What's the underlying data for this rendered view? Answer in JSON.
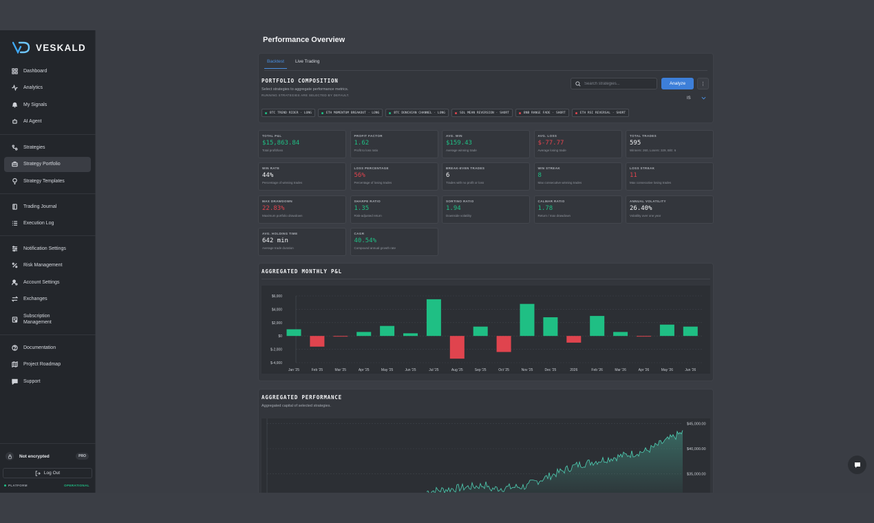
{
  "app": {
    "name": "VESKALD"
  },
  "sidebar": {
    "groups": [
      [
        {
          "label": "Dashboard",
          "icon": "grid-icon"
        },
        {
          "label": "Analytics",
          "icon": "activity-icon"
        },
        {
          "label": "My Signals",
          "icon": "bell-icon"
        },
        {
          "label": "AI Agent",
          "icon": "bot-icon"
        }
      ],
      [
        {
          "label": "Strategies",
          "icon": "route-icon"
        },
        {
          "label": "Strategy Portfolio",
          "icon": "briefcase-icon",
          "active": true
        },
        {
          "label": "Strategy Templates",
          "icon": "lightbulb-icon"
        }
      ],
      [
        {
          "label": "Trading Journal",
          "icon": "book-icon"
        },
        {
          "label": "Execution Log",
          "icon": "list-icon"
        }
      ],
      [
        {
          "label": "Notification Settings",
          "icon": "sliders-icon"
        },
        {
          "label": "Risk Management",
          "icon": "percent-icon"
        },
        {
          "label": "Account Settings",
          "icon": "user-cog-icon"
        },
        {
          "label": "Exchanges",
          "icon": "swap-icon"
        },
        {
          "label": "Subscription Management",
          "icon": "receipt-icon"
        }
      ],
      [
        {
          "label": "Documentation",
          "icon": "help-icon"
        },
        {
          "label": "Project Roadmap",
          "icon": "map-icon"
        },
        {
          "label": "Support",
          "icon": "chat-icon"
        }
      ]
    ],
    "encryption": {
      "label": "Not encrypted",
      "badge": "PRO"
    },
    "logout_label": "Log Out",
    "status": {
      "left": "PLATFORM",
      "right": "OPERATIONAL"
    }
  },
  "page": {
    "title": "Performance Overview"
  },
  "tabs": [
    {
      "label": "Backtest",
      "active": true
    },
    {
      "label": "Live Trading"
    }
  ],
  "portfolio": {
    "title": "PORTFOLIO COMPOSITION",
    "description": "Select strategies to aggregate performance metrics.",
    "note": "RUNNING STRATEGIES ARE SELECTED BY DEFAULT.",
    "search_placeholder": "Search strategies...",
    "analyze_label": "Analyze",
    "kebab": "⋮",
    "sample_select": "IS",
    "chips": [
      {
        "label": "BTC TREND RIDER · LONG",
        "side": "long"
      },
      {
        "label": "ETH MOMENTUM BREAKOUT · LONG",
        "side": "long"
      },
      {
        "label": "BTC DONCHIAN CHANNEL · LONG",
        "side": "long"
      },
      {
        "label": "SOL MEAN REVERSION · SHORT",
        "side": "short"
      },
      {
        "label": "BNB RANGE FADE · SHORT",
        "side": "short"
      },
      {
        "label": "ETH RSI REVERSAL · SHORT",
        "side": "short"
      }
    ],
    "colors": {
      "long": "#1fbf84",
      "short": "#e0444e"
    }
  },
  "metrics": [
    {
      "label": "TOTAL P&L",
      "value": "$15,863.84",
      "sub": "Total profit/loss",
      "tone": "pos"
    },
    {
      "label": "PROFIT FACTOR",
      "value": "1.62",
      "sub": "Profit to loss ratio",
      "tone": "pos"
    },
    {
      "label": "AVG. WIN",
      "value": "$159.43",
      "sub": "Average winning trade",
      "tone": "pos"
    },
    {
      "label": "AVG. LOSS",
      "value": "$-77.77",
      "sub": "Average losing trade",
      "tone": "neg"
    },
    {
      "label": "TOTAL TRADES",
      "value": "595",
      "sub": "Winners: 260, Losers: 329, B/E: 6",
      "tone": "neu"
    },
    {
      "label": "WIN RATE",
      "value": "44%",
      "sub": "Percentage of winning trades",
      "tone": "neu"
    },
    {
      "label": "LOSS PERCENTAGE",
      "value": "56%",
      "sub": "Percentage of losing trades",
      "tone": "neg"
    },
    {
      "label": "BREAK-EVEN TRADES",
      "value": "6",
      "sub": "Trades with no profit or loss",
      "tone": "neu"
    },
    {
      "label": "WIN STREAK",
      "value": "8",
      "sub": "Max consecutive winning trades",
      "tone": "pos"
    },
    {
      "label": "LOSS STREAK",
      "value": "11",
      "sub": "Max consecutive losing trades",
      "tone": "neg"
    },
    {
      "label": "MAX DRAWDOWN",
      "value": "22.83%",
      "sub": "Maximum portfolio drawdown",
      "tone": "neg"
    },
    {
      "label": "SHARPE RATIO",
      "value": "1.35",
      "sub": "Risk-adjusted return",
      "tone": "pos"
    },
    {
      "label": "SORTINO RATIO",
      "value": "1.94",
      "sub": "Downside volatility",
      "tone": "pos"
    },
    {
      "label": "CALMAR RATIO",
      "value": "1.78",
      "sub": "Return / max drawdown",
      "tone": "pos"
    },
    {
      "label": "ANNUAL VOLATILITY",
      "value": "26.40%",
      "sub": "Volatility over one year",
      "tone": "neu"
    },
    {
      "label": "AVG. HOLDING TIME",
      "value": "642 min",
      "sub": "Average trade duration",
      "tone": "neu"
    },
    {
      "label": "CAGR",
      "value": "40.54%",
      "sub": "Compound annual growth rate",
      "tone": "pos"
    }
  ],
  "monthly": {
    "title": "AGGREGATED MONTHLY P&L",
    "y_ticks": [
      "$6,000",
      "$4,000",
      "$2,000",
      "$0",
      "$-2,000",
      "$-4,000"
    ]
  },
  "performance": {
    "title": "AGGREGATED PERFORMANCE",
    "description": "Aggregated capital of selected strategies.",
    "y_ticks": [
      "$45,000.00",
      "$40,000.00",
      "$35,000.00"
    ]
  },
  "chart_data": [
    {
      "type": "bar",
      "title": "AGGREGATED MONTHLY P&L",
      "categories": [
        "Jan '25",
        "Feb '25",
        "Mar '25",
        "Apr '25",
        "May '25",
        "Jun '25",
        "Jul '25",
        "Aug '25",
        "Sep '25",
        "Oct '25",
        "Nov '25",
        "Dec '25",
        "2026",
        "Feb '26",
        "Mar '26",
        "Apr '26",
        "May '26",
        "Jun '26"
      ],
      "values": [
        1000,
        -1600,
        -100,
        600,
        1500,
        400,
        5500,
        -3400,
        1400,
        -2400,
        4800,
        2800,
        -1000,
        3000,
        600,
        -100,
        1700,
        1400
      ],
      "ylim": [
        -4000,
        6000
      ],
      "colors": {
        "positive": "#1fbf84",
        "negative": "#e0444e"
      }
    },
    {
      "type": "area",
      "title": "AGGREGATED PERFORMANCE",
      "ylabel": "",
      "y_ticks": [
        45000,
        40000,
        35000
      ],
      "visible_range": [
        31000,
        46000
      ],
      "approx_end_value": 42000,
      "color": "#4fd1b5"
    }
  ]
}
